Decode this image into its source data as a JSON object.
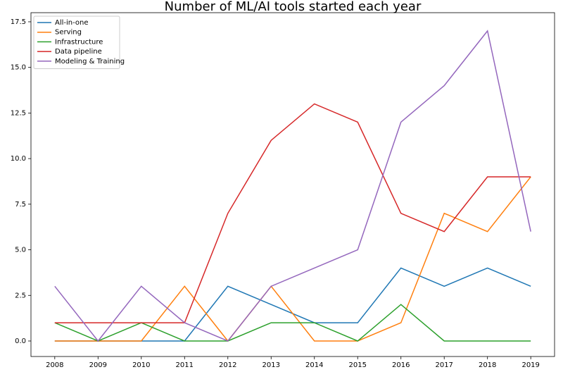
{
  "chart_data": {
    "type": "line",
    "title": "Number of ML/AI tools started each year",
    "x": [
      2008,
      2009,
      2010,
      2011,
      2012,
      2013,
      2014,
      2015,
      2016,
      2017,
      2018,
      2019
    ],
    "series": [
      {
        "name": "All-in-one",
        "color": "#1f77b4",
        "values": [
          0,
          0,
          0,
          0,
          3,
          2,
          1,
          1,
          4,
          3,
          4,
          3
        ]
      },
      {
        "name": "Serving",
        "color": "#ff7f0e",
        "values": [
          0,
          0,
          0,
          3,
          0,
          3,
          0,
          0,
          1,
          7,
          6,
          9
        ]
      },
      {
        "name": "Infrastructure",
        "color": "#2ca02c",
        "values": [
          1,
          0,
          1,
          0,
          0,
          1,
          1,
          0,
          2,
          0,
          0,
          0
        ]
      },
      {
        "name": "Data pipeline",
        "color": "#d62728",
        "values": [
          1,
          1,
          1,
          1,
          7,
          11,
          13,
          12,
          7,
          6,
          9,
          9
        ]
      },
      {
        "name": "Modeling & Training",
        "color": "#9467bd",
        "values": [
          3,
          0,
          3,
          1,
          0,
          3,
          4,
          5,
          12,
          14,
          17,
          6
        ]
      }
    ],
    "xlim": [
      2007.45,
      2019.55
    ],
    "xticks": [
      2008,
      2009,
      2010,
      2011,
      2012,
      2013,
      2014,
      2015,
      2016,
      2017,
      2018,
      2019
    ],
    "ylim": [
      -0.85,
      18.0
    ],
    "yticks": [
      {
        "value": 0,
        "label": "0.0"
      },
      2.5,
      {
        "value": 5,
        "label": "5.0"
      },
      7.5,
      {
        "value": 10,
        "label": "10.0"
      },
      12.5,
      {
        "value": 15,
        "label": "15.0"
      },
      17.5
    ],
    "legend": "upper left",
    "grid": false
  }
}
